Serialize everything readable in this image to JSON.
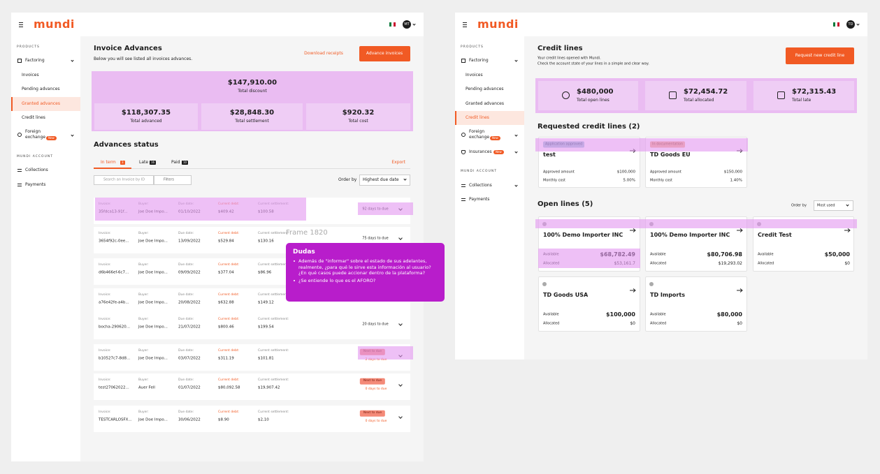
{
  "left": {
    "logo": "mundi",
    "avatar": "MT",
    "sidebar": {
      "products": "PRODUCTS",
      "factoring": "Factoring",
      "items": [
        "Invoices",
        "Pending advances",
        "Granted advances",
        "Credit lines"
      ],
      "foreign": [
        "Foreign",
        "exchange"
      ],
      "new": "New",
      "account": "MUNDI ACCOUNT",
      "collections": "Collections",
      "payments": "Payments"
    },
    "header": {
      "title": "Invoice Advances",
      "subtitle": "Below you will see listed all invoices advances.",
      "download": "Download receipts",
      "advance": "Advance invoices"
    },
    "summary": {
      "top": {
        "value": "$147,910.00",
        "label": "Total discount"
      },
      "cells": [
        {
          "value": "$118,307.35",
          "label": "Total advanced"
        },
        {
          "value": "$28,848.30",
          "label": "Total settlement"
        },
        {
          "value": "$920.32",
          "label": "Total cost"
        }
      ]
    },
    "status": {
      "title": "Advances status",
      "tabs": [
        {
          "label": "In term",
          "count": "3"
        },
        {
          "label": "Late",
          "count": "16"
        },
        {
          "label": "Paid",
          "count": "10"
        }
      ],
      "export": "Export",
      "search": "Search an Invoice by ID",
      "filters": "Filters",
      "order_by": "Order by",
      "order": "Highest due date"
    },
    "labels": {
      "invoice": "Invoice:",
      "buyer": "Buyer:",
      "due": "Due date:",
      "debt": "Current debt:",
      "settlement": "Current settlement:"
    },
    "rows": [
      {
        "invoice": "35fdca13-91f...",
        "buyer": "Joe Doe Impo...",
        "due": "01/10/2022",
        "debt": "$409.42",
        "settlement": "$100.58",
        "days": "92 days to due"
      },
      {
        "invoice": "3654f92c-0ee...",
        "buyer": "Joe Doe Impo...",
        "due": "13/09/2022",
        "debt": "$529.84",
        "settlement": "$130.16",
        "days": "75 days to due"
      },
      {
        "invoice": "d6b466ef-6c7...",
        "buyer": "Joe Doe Impo...",
        "due": "09/09/2022",
        "debt": "$377.04",
        "settlement": "$86.96"
      },
      {
        "invoice": "a76e42fe-a4b...",
        "buyer": "Joe Doe Impo...",
        "due": "20/08/2022",
        "debt": "$632.88",
        "settlement": "$149.12"
      },
      {
        "invoice": "bocha-290620...",
        "buyer": "Joe Doe Impo...",
        "due": "21/07/2022",
        "debt": "$800.46",
        "settlement": "$199.54",
        "days": "20 days to due"
      },
      {
        "invoice": "b10527c7-8d8...",
        "buyer": "Joe Doe Impo...",
        "due": "03/07/2022",
        "debt": "$311.19",
        "settlement": "$101.81",
        "badge": "Next to due",
        "days": "2 days to due"
      },
      {
        "invoice": "test27062022...",
        "buyer": "Auer Fell",
        "due": "01/07/2022",
        "debt": "$80,092.58",
        "settlement": "$19,907.42",
        "badge": "Next to due",
        "days": "0 days to due"
      },
      {
        "invoice": "TESTCARLOSFX...",
        "buyer": "Joe Doe Impo...",
        "due": "30/06/2022",
        "debt": "$8.90",
        "settlement": "$2,10",
        "badge": "Next to due",
        "days": "0 days to due"
      }
    ],
    "annotation": {
      "frame": "Frame 1820",
      "title": "Dudas",
      "bullets": [
        "Además de \"informar\" sobre el estado de sus adelantes, realmente, ¿para qué le sirve esta información al usuario? ¿En qué casos puede accionar dentro de la plataforma?",
        "¿Se entiende lo que es el AFORO?"
      ]
    }
  },
  "right": {
    "logo": "mundi",
    "avatar": "TD",
    "sidebar": {
      "products": "PRODUCTS",
      "factoring": "Factoring",
      "items": [
        "Invoices",
        "Pending advances",
        "Granted advances",
        "Credit lines"
      ],
      "foreign": [
        "Foreign",
        "exchange"
      ],
      "new": "New",
      "insurances": "Insurances",
      "account": "MUNDI ACCOUNT",
      "collections": "Collections",
      "payments": "Payments"
    },
    "header": {
      "title": "Credit lines",
      "lines": [
        "Your credit lines opened with Mundi.",
        "Check the account state of your lines in a simple and clear way."
      ],
      "button": "Request new credit line"
    },
    "summary": [
      {
        "value": "$480,000",
        "label": "Total open lines"
      },
      {
        "value": "$72,454.72",
        "label": "Total allocated"
      },
      {
        "value": "$72,315.43",
        "label": "Total late"
      }
    ],
    "requested": {
      "title": "Requested credit lines (2)",
      "labels": {
        "approved": "Approved amount",
        "monthly": "Monthly cost"
      },
      "cards": [
        {
          "status": "Application approved",
          "name": "test",
          "amount": "$100,000",
          "cost": "5.00%"
        },
        {
          "status": "In documentation",
          "name": "TD Goods EU",
          "amount": "$150,000",
          "cost": "1.40%"
        }
      ]
    },
    "open": {
      "title": "Open lines (5)",
      "order_by": "Order by",
      "order": "Most used",
      "labels": {
        "available": "Available",
        "allocated": "Allocated"
      },
      "cards": [
        {
          "name": "100% Demo Importer INC",
          "available": "$68,782.49",
          "allocated": "$53,161.7"
        },
        {
          "name": "100% Demo Importer INC",
          "available": "$80,706.98",
          "allocated": "$19,293.02"
        },
        {
          "name": "Credit Test",
          "available": "$50,000",
          "allocated": "$0"
        },
        {
          "name": "TD Goods USA",
          "available": "$100,000",
          "allocated": "$0"
        },
        {
          "name": "TD Imports",
          "available": "$80,000",
          "allocated": "$0"
        }
      ]
    }
  }
}
